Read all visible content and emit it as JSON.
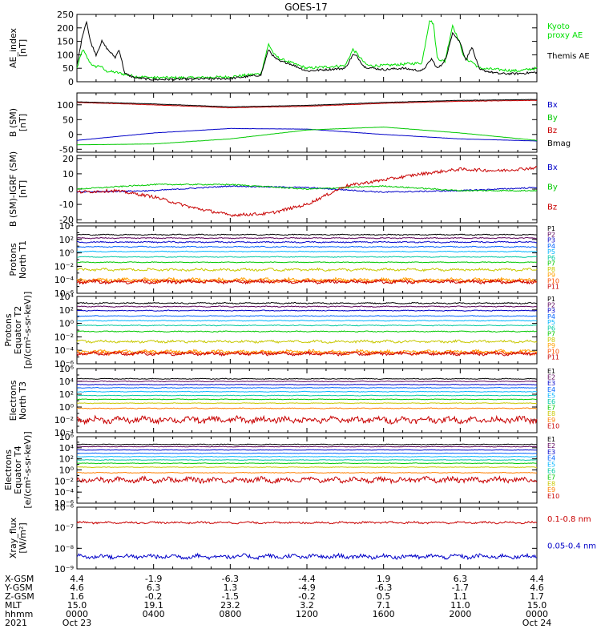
{
  "title": "GOES-17",
  "chart_data": [
    {
      "type": "line",
      "ylabel": "AE_index\n[nT]",
      "yscale": "linear",
      "ylim": [
        0,
        250
      ],
      "yticks": [
        "0",
        "50",
        "100",
        "150",
        "200",
        "250"
      ],
      "tick_values": [
        0,
        50,
        100,
        150,
        200,
        250
      ],
      "grid": false,
      "series": [
        {
          "name": "Kyoto\nproxy AE",
          "color": "#00e000",
          "noise": 5,
          "x": [
            0,
            0.3,
            0.6,
            0.9,
            1.2,
            1.5,
            2,
            3,
            4,
            6,
            8,
            9.6,
            10,
            10.3,
            10.6,
            11,
            12,
            13,
            14,
            14.4,
            14.6,
            15,
            15.2,
            16,
            17,
            18,
            18.4,
            18.6,
            18.8,
            19,
            19.2,
            19.6,
            20,
            20.2,
            20.4,
            20.6,
            21,
            22,
            23,
            24
          ],
          "values": [
            50,
            120,
            80,
            55,
            60,
            40,
            35,
            20,
            15,
            15,
            18,
            30,
            140,
            100,
            85,
            75,
            50,
            55,
            60,
            120,
            105,
            70,
            60,
            60,
            65,
            70,
            230,
            215,
            90,
            80,
            75,
            210,
            140,
            90,
            80,
            75,
            50,
            45,
            40,
            50
          ]
        },
        {
          "name": "Themis AE",
          "color": "#000000",
          "noise": 4,
          "x": [
            0,
            0.3,
            0.5,
            0.7,
            1,
            1.3,
            1.6,
            2,
            2.2,
            2.5,
            3,
            4,
            6,
            8,
            9.6,
            10,
            10.3,
            10.6,
            11,
            12,
            13,
            14,
            14.4,
            14.6,
            15,
            16,
            17,
            18,
            18.3,
            18.5,
            18.8,
            19,
            19.3,
            19.6,
            20,
            20.3,
            20.6,
            21,
            22,
            23,
            24
          ],
          "values": [
            60,
            175,
            225,
            150,
            100,
            150,
            120,
            90,
            120,
            30,
            15,
            8,
            10,
            12,
            25,
            120,
            90,
            75,
            70,
            40,
            45,
            50,
            100,
            95,
            55,
            45,
            50,
            40,
            65,
            85,
            50,
            60,
            95,
            185,
            145,
            80,
            130,
            45,
            30,
            30,
            35
          ]
        }
      ]
    },
    {
      "type": "line",
      "ylabel": "B (SM)\n[nT]",
      "yscale": "linear",
      "ylim": [
        -60,
        140
      ],
      "yticks": [
        "-50",
        "0",
        "50",
        "100"
      ],
      "tick_values": [
        -50,
        0,
        50,
        100
      ],
      "grid": false,
      "series": [
        {
          "name": "Bx",
          "color": "#0000c8",
          "noise": 0.3,
          "x": [
            0,
            4,
            8,
            12,
            16,
            20,
            24
          ],
          "values": [
            -20,
            5,
            20,
            18,
            0,
            -15,
            -22
          ]
        },
        {
          "name": "By",
          "color": "#00c800",
          "noise": 0.3,
          "x": [
            0,
            4,
            8,
            12,
            16,
            20,
            24
          ],
          "values": [
            -35,
            -32,
            -15,
            15,
            25,
            5,
            -20
          ]
        },
        {
          "name": "Bz",
          "color": "#c80000",
          "noise": 0.6,
          "x": [
            0,
            4,
            8,
            12,
            16,
            20,
            24
          ],
          "values": [
            108,
            100,
            90,
            95,
            105,
            112,
            115
          ]
        },
        {
          "name": "Bmag",
          "color": "#000000",
          "noise": 0.5,
          "x": [
            0,
            4,
            8,
            12,
            16,
            20,
            24
          ],
          "values": [
            110,
            103,
            93,
            98,
            108,
            115,
            118
          ]
        }
      ]
    },
    {
      "type": "line",
      "ylabel": "B (SM)-IGRF (SM)\n[nT]",
      "yscale": "linear",
      "ylim": [
        -22,
        22
      ],
      "yticks": [
        "-20",
        "-10",
        "0",
        "10",
        "20"
      ],
      "tick_values": [
        -20,
        -10,
        0,
        10,
        20
      ],
      "grid": false,
      "series": [
        {
          "name": "Bx",
          "color": "#0000c8",
          "noise": 0.4,
          "x": [
            0,
            4,
            8,
            12,
            16,
            20,
            24
          ],
          "values": [
            -2,
            -1,
            2,
            1,
            -2,
            -1,
            1
          ]
        },
        {
          "name": "By",
          "color": "#00c800",
          "noise": 0.4,
          "x": [
            0,
            4,
            8,
            12,
            16,
            20,
            24
          ],
          "values": [
            0,
            3,
            3,
            0,
            2,
            -1,
            -1
          ]
        },
        {
          "name": "Bz",
          "color": "#c80000",
          "noise": 1.0,
          "x": [
            0,
            2,
            4,
            6,
            8,
            10,
            12,
            14,
            16,
            18,
            20,
            22,
            24
          ],
          "values": [
            -2,
            -1,
            -5,
            -12,
            -17,
            -16,
            -10,
            2,
            6,
            10,
            13,
            12,
            14
          ]
        }
      ]
    },
    {
      "type": "line",
      "ylabel": "Protons\nNorth T1",
      "yscale": "log",
      "ylim": [
        -6,
        4
      ],
      "yticks": [
        "10⁴",
        "10²",
        "10⁰",
        "10⁻²",
        "10⁻⁴",
        "10⁻⁶"
      ],
      "tick_values": [
        4,
        2,
        0,
        -2,
        -4,
        -6
      ],
      "grid": false,
      "series": [
        {
          "name": "P1",
          "color": "#000000",
          "level": 2.7,
          "noise": 0.06
        },
        {
          "name": "P2",
          "color": "#5a005a",
          "level": 2.2,
          "noise": 0.06
        },
        {
          "name": "P3",
          "color": "#0000c8",
          "level": 1.6,
          "noise": 0.08
        },
        {
          "name": "P4",
          "color": "#0064ff",
          "level": 0.9,
          "noise": 0.06
        },
        {
          "name": "P5",
          "color": "#00b4ff",
          "level": 0.2,
          "noise": 0.05
        },
        {
          "name": "P6",
          "color": "#00c8a0",
          "level": -0.6,
          "noise": 0.05
        },
        {
          "name": "P7",
          "color": "#00c800",
          "level": -1.4,
          "noise": 0.05
        },
        {
          "name": "P8",
          "color": "#c8c800",
          "level": -2.5,
          "noise": 0.15
        },
        {
          "name": "P9",
          "color": "#ffa000",
          "level": -4.0,
          "noise": 0.2
        },
        {
          "name": "P10",
          "color": "#ff5000",
          "level": -4.2,
          "noise": 0.2
        },
        {
          "name": "P11",
          "color": "#c80000",
          "level": -4.3,
          "noise": 0.2
        }
      ]
    },
    {
      "type": "line",
      "ylabel": "Protons\nEquator T2\n[p/(cm²-s-sr-keV)]",
      "yscale": "log",
      "ylim": [
        -6,
        4
      ],
      "yticks": [
        "10⁴",
        "10²",
        "10⁰",
        "10⁻²",
        "10⁻⁴",
        "10⁻⁶"
      ],
      "tick_values": [
        4,
        2,
        0,
        -2,
        -4,
        -6
      ],
      "grid": false,
      "series": [
        {
          "name": "P1",
          "color": "#000000",
          "level": 3.0,
          "noise": 0.08
        },
        {
          "name": "P2",
          "color": "#5a005a",
          "level": 2.5,
          "noise": 0.06
        },
        {
          "name": "P3",
          "color": "#0000c8",
          "level": 1.9,
          "noise": 0.05
        },
        {
          "name": "P4",
          "color": "#0064ff",
          "level": 1.1,
          "noise": 0.05
        },
        {
          "name": "P5",
          "color": "#00b4ff",
          "level": 0.4,
          "noise": 0.05
        },
        {
          "name": "P6",
          "color": "#00c8a0",
          "level": -0.3,
          "noise": 0.05
        },
        {
          "name": "P7",
          "color": "#00c800",
          "level": -1.2,
          "noise": 0.06
        },
        {
          "name": "P8",
          "color": "#c8c800",
          "level": -2.7,
          "noise": 0.15
        },
        {
          "name": "P9",
          "color": "#ffa000",
          "level": -4.2,
          "noise": 0.2
        },
        {
          "name": "P10",
          "color": "#ff5000",
          "level": -4.4,
          "noise": 0.2
        },
        {
          "name": "P11",
          "color": "#c80000",
          "level": -4.5,
          "noise": 0.2
        }
      ]
    },
    {
      "type": "line",
      "ylabel": "Electrons\nNorth T3",
      "yscale": "log",
      "ylim": [
        -4,
        6
      ],
      "yticks": [
        "10⁶",
        "10⁴",
        "10²",
        "10⁰",
        "10⁻²",
        "10⁻⁴"
      ],
      "tick_values": [
        6,
        4,
        2,
        0,
        -2,
        -4
      ],
      "grid": false,
      "series": [
        {
          "name": "E1",
          "color": "#000000",
          "level": 4.4,
          "noise": 0.05
        },
        {
          "name": "E2",
          "color": "#5a005a",
          "level": 4.0,
          "noise": 0.05
        },
        {
          "name": "E3",
          "color": "#0000c8",
          "level": 3.5,
          "noise": 0.04
        },
        {
          "name": "E4",
          "color": "#0064ff",
          "level": 3.0,
          "noise": 0.04
        },
        {
          "name": "E5",
          "color": "#00b4ff",
          "level": 2.4,
          "noise": 0.04
        },
        {
          "name": "E6",
          "color": "#00c8a0",
          "level": 1.8,
          "noise": 0.04
        },
        {
          "name": "E7",
          "color": "#00c800",
          "level": 1.2,
          "noise": 0.04
        },
        {
          "name": "E8",
          "color": "#c8c800",
          "level": 0.6,
          "noise": 0.04
        },
        {
          "name": "E9",
          "color": "#ff8000",
          "level": -0.2,
          "noise": 0.05
        },
        {
          "name": "E10",
          "color": "#c80000",
          "level": -2.0,
          "noise": 0.4
        }
      ]
    },
    {
      "type": "line",
      "ylabel": "Electrons\nEquator T4\n[e/(cm²-s-sr-keV)]",
      "yscale": "log",
      "ylim": [
        -6,
        6
      ],
      "yticks": [
        "10⁶",
        "10⁴",
        "10²",
        "10⁰",
        "10⁻²",
        "10⁻⁴",
        "10⁻⁶"
      ],
      "tick_values": [
        6,
        4,
        2,
        0,
        -2,
        -4,
        -6
      ],
      "grid": false,
      "series": [
        {
          "name": "E1",
          "color": "#000000",
          "level": 4.6,
          "noise": 0.05
        },
        {
          "name": "E2",
          "color": "#5a005a",
          "level": 4.2,
          "noise": 0.05
        },
        {
          "name": "E3",
          "color": "#0000c8",
          "level": 3.6,
          "noise": 0.04
        },
        {
          "name": "E4",
          "color": "#0064ff",
          "level": 3.0,
          "noise": 0.04
        },
        {
          "name": "E5",
          "color": "#00b4ff",
          "level": 2.4,
          "noise": 0.04
        },
        {
          "name": "E6",
          "color": "#00c8a0",
          "level": 1.8,
          "noise": 0.04
        },
        {
          "name": "E7",
          "color": "#00c800",
          "level": 1.2,
          "noise": 0.04
        },
        {
          "name": "E8",
          "color": "#c8c800",
          "level": 0.5,
          "noise": 0.04
        },
        {
          "name": "E9",
          "color": "#ff8000",
          "level": -0.5,
          "noise": 0.05
        },
        {
          "name": "E10",
          "color": "#c80000",
          "level": -1.8,
          "noise": 0.4
        }
      ]
    },
    {
      "type": "line",
      "ylabel": "Xray_flux\n[W/m²]",
      "yscale": "log",
      "ylim": [
        -9,
        -6
      ],
      "yticks": [
        "10⁻⁶",
        "10⁻⁷",
        "10⁻⁸",
        "10⁻⁹"
      ],
      "tick_values": [
        -6,
        -7,
        -8,
        -9
      ],
      "grid": false,
      "series": [
        {
          "name": "0.1-0.8 nm",
          "color": "#c80000",
          "level": -6.75,
          "noise": 0.04
        },
        {
          "name": "0.05-0.4 nm",
          "color": "#0000c8",
          "level": -8.4,
          "noise": 0.09
        }
      ]
    }
  ],
  "x_axis": {
    "xlim": [
      0,
      24
    ],
    "major_ticks_hours": [
      0,
      4,
      8,
      12,
      16,
      20,
      24
    ],
    "row_labels": [
      "X-GSM",
      "Y-GSM",
      "Z-GSM",
      "MLT",
      "hhmm",
      "2021"
    ],
    "columns": [
      [
        "4.4",
        "4.6",
        "1.6",
        "15.0",
        "0000",
        "Oct 23"
      ],
      [
        "-1.9",
        "6.3",
        "-0.2",
        "19.1",
        "0400",
        ""
      ],
      [
        "-6.3",
        "1.3",
        "-1.5",
        "23.2",
        "0800",
        ""
      ],
      [
        "-4.4",
        "-4.9",
        "-0.2",
        "3.2",
        "1200",
        ""
      ],
      [
        "1.9",
        "-6.3",
        "0.5",
        "7.1",
        "1600",
        ""
      ],
      [
        "6.3",
        "-1.7",
        "1.1",
        "11.0",
        "2000",
        ""
      ],
      [
        "4.4",
        "4.6",
        "1.7",
        "15.0",
        "0000",
        "Oct 24"
      ]
    ]
  }
}
